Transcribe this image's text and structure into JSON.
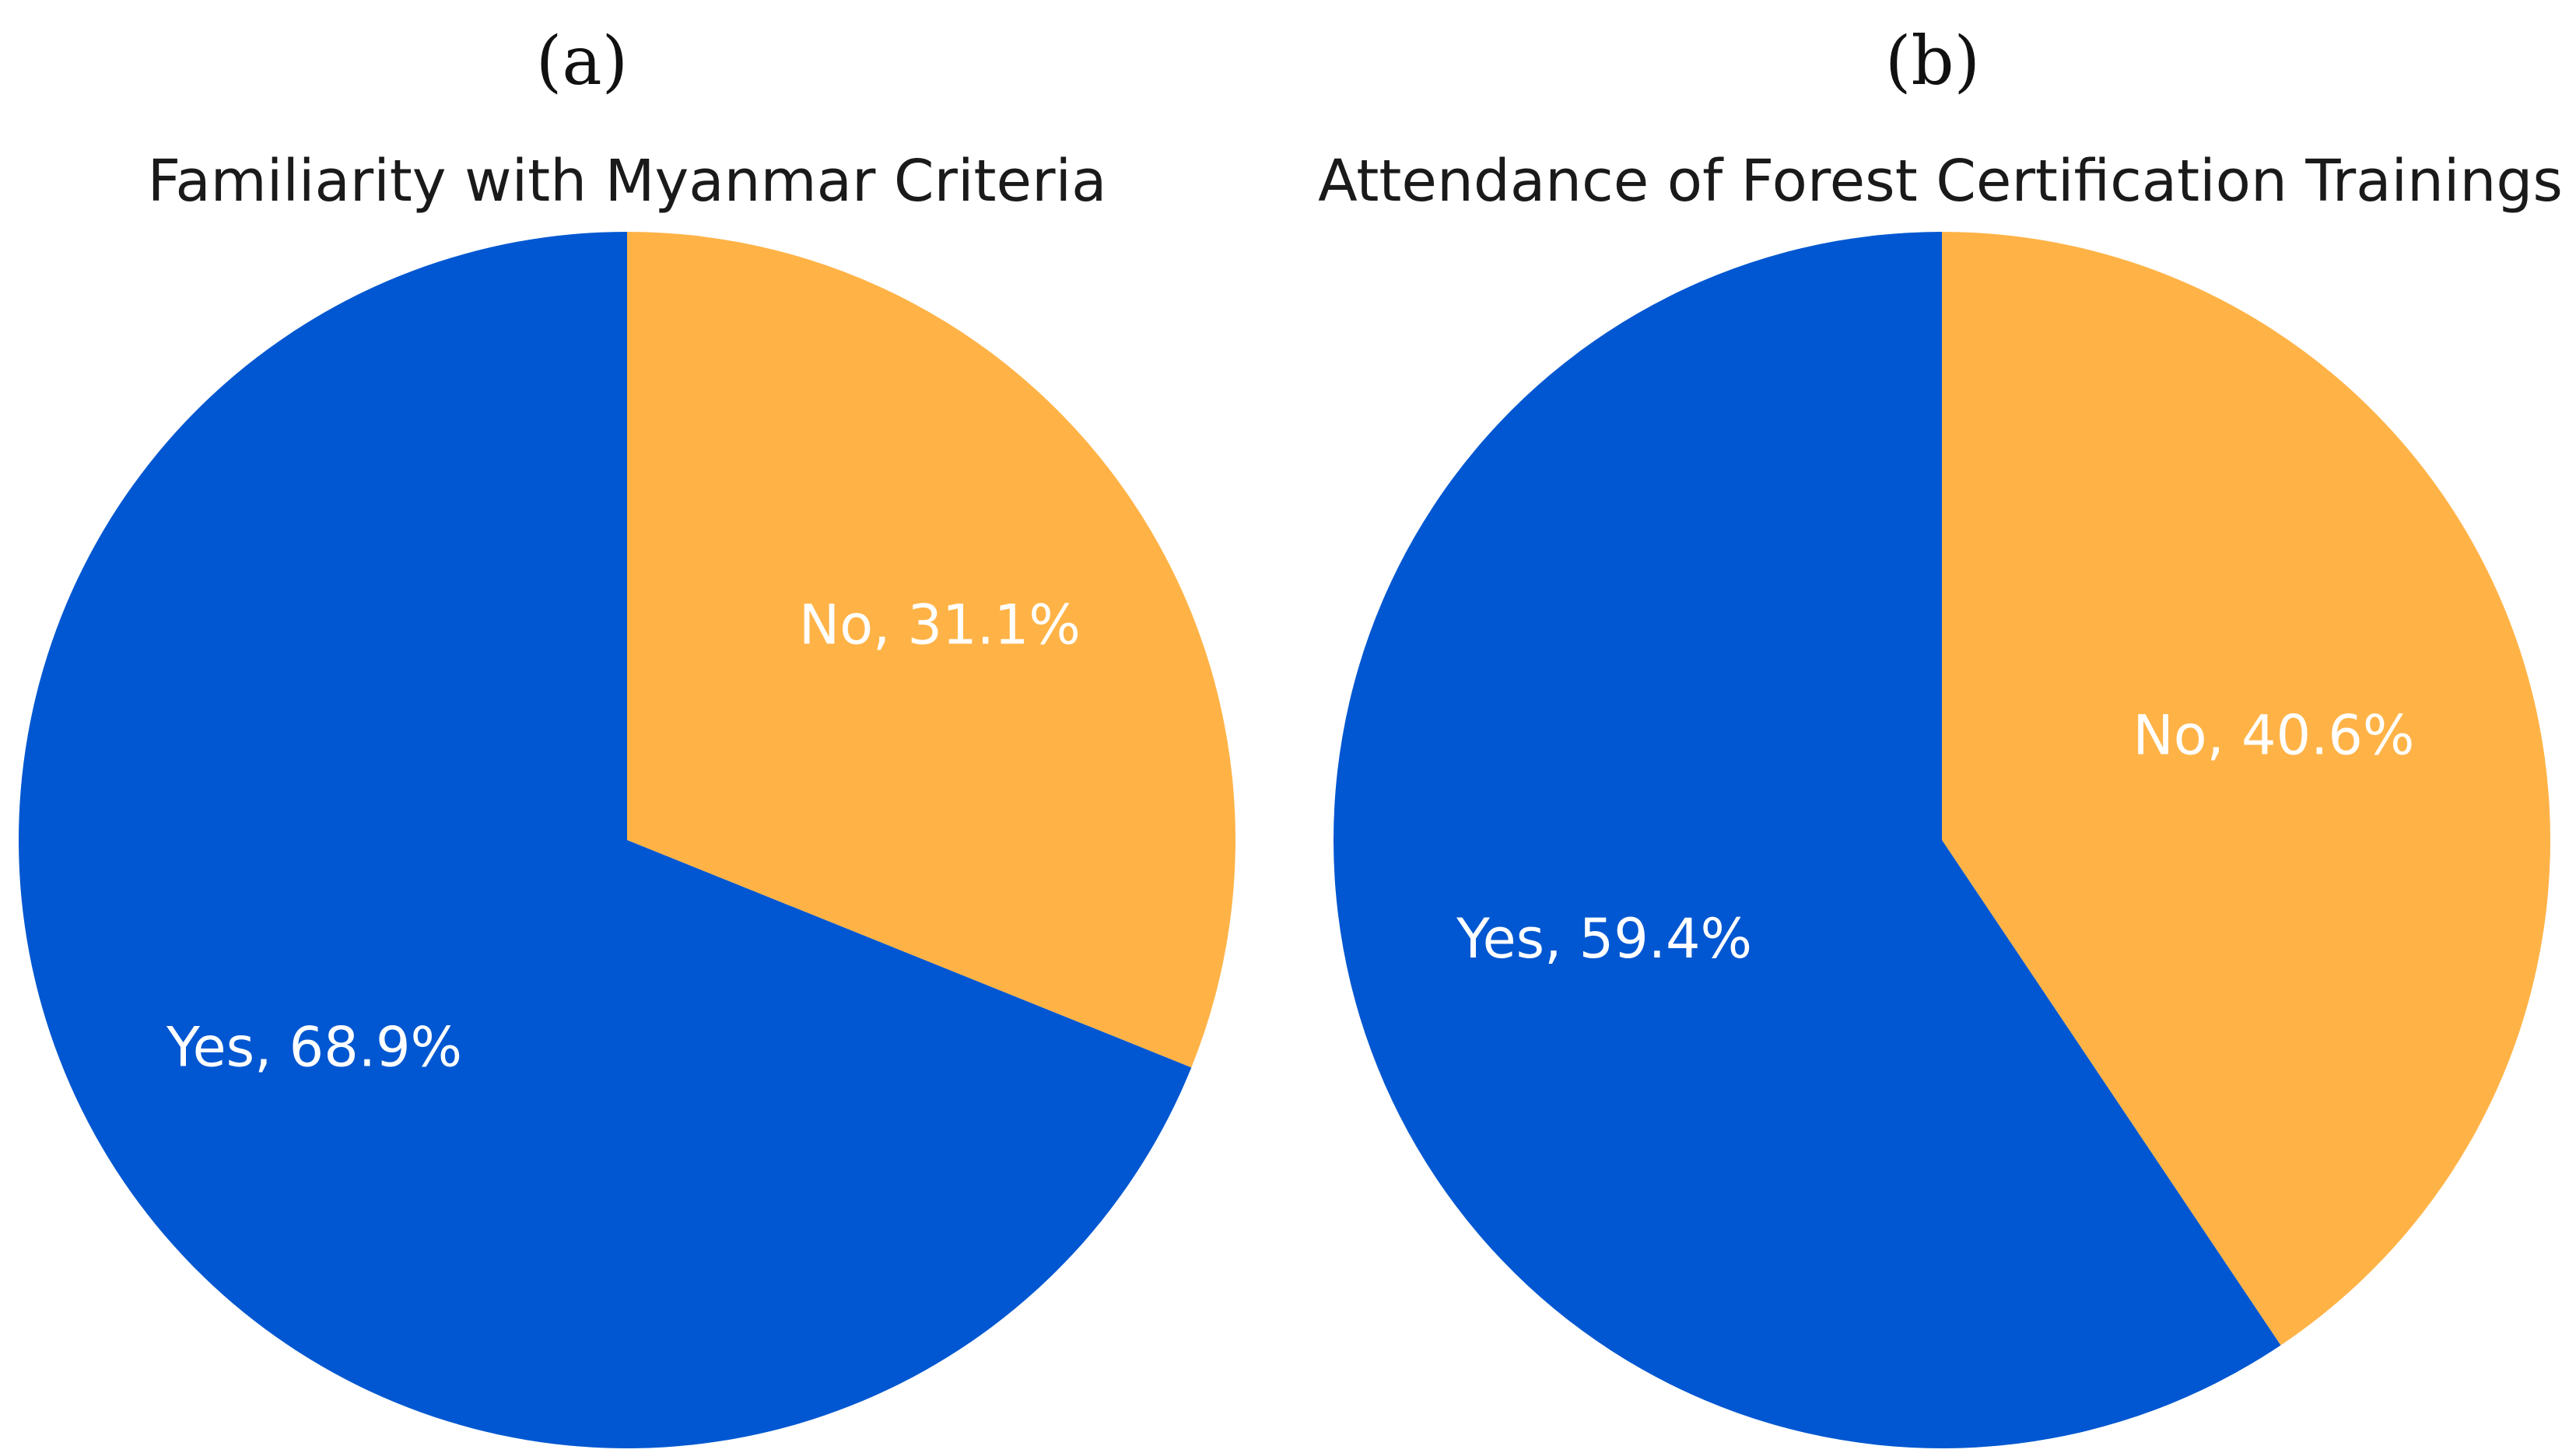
{
  "chart_data": [
    {
      "type": "pie",
      "panel": "(a)",
      "title": "Familiarity with Myanmar Criteria",
      "slices": [
        {
          "label": "No",
          "value": 31.1,
          "display": "No, 31.1%",
          "color": "#FFB347"
        },
        {
          "label": "Yes",
          "value": 68.9,
          "display": "Yes, 68.9%",
          "color": "#0057D1"
        }
      ],
      "start": "top",
      "direction": "clockwise"
    },
    {
      "type": "pie",
      "panel": "(b)",
      "title": "Attendance of Forest Certification Trainings",
      "slices": [
        {
          "label": "No",
          "value": 40.6,
          "display": "No, 40.6%",
          "color": "#FFB347"
        },
        {
          "label": "Yes",
          "value": 59.4,
          "display": "Yes, 59.4%",
          "color": "#0057D1"
        }
      ],
      "start": "top",
      "direction": "clockwise"
    }
  ]
}
